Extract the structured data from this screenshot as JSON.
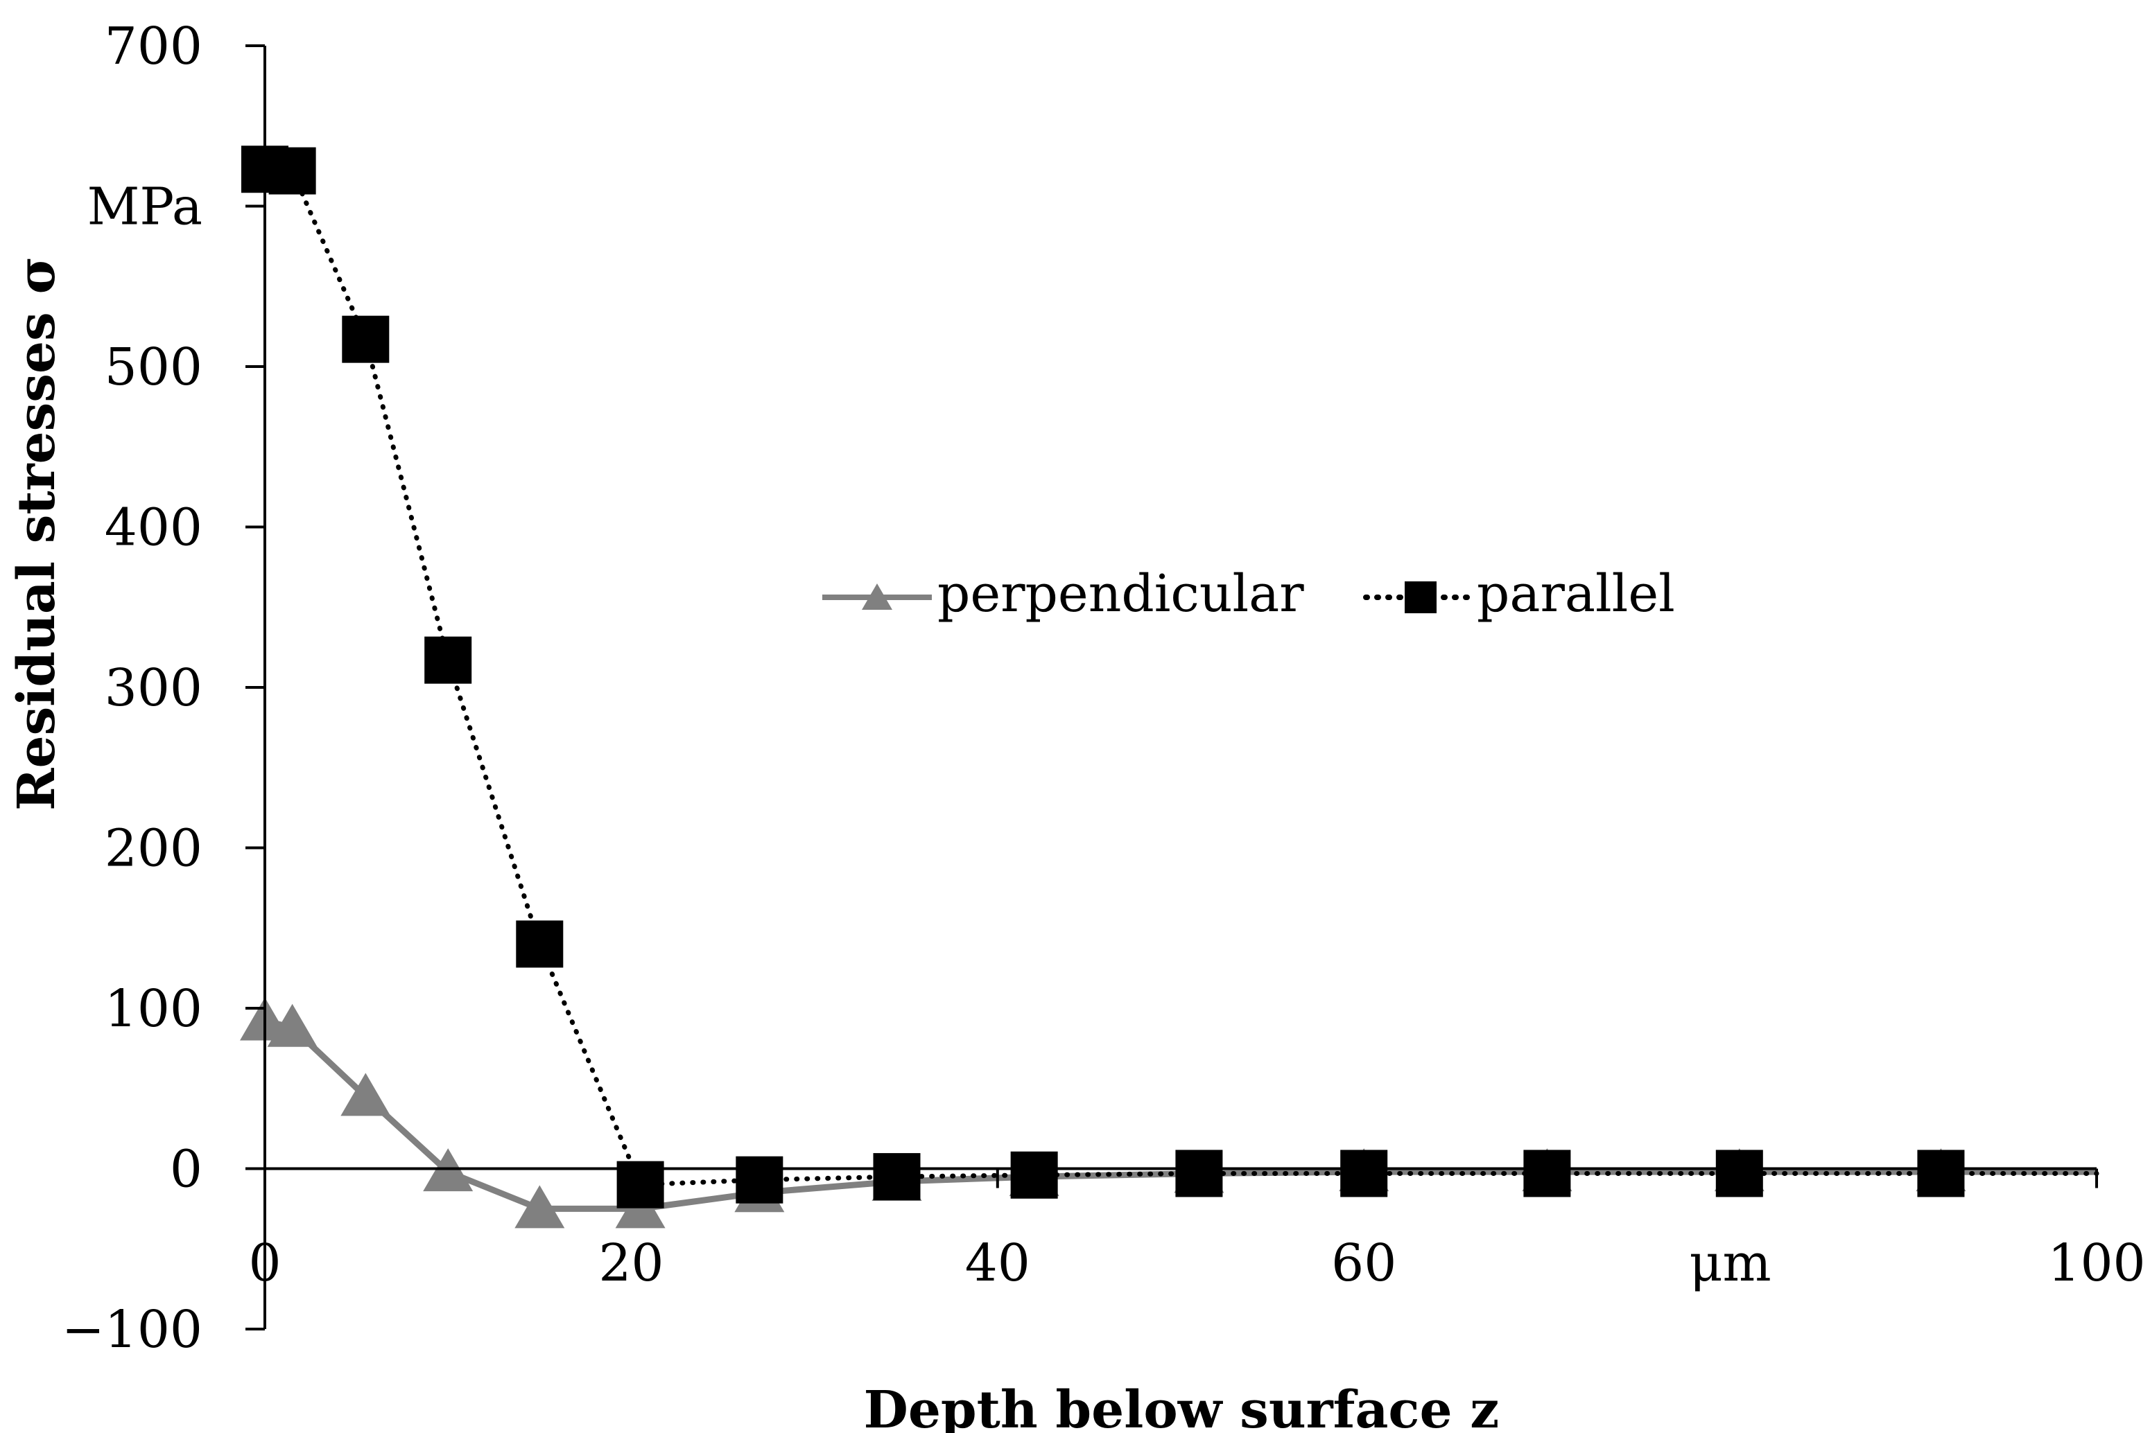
{
  "chart_data": {
    "type": "line",
    "xlabel": "Depth below surface z",
    "ylabel": "Residual stresses σ",
    "x_unit": "μm",
    "y_unit": "MPa",
    "xlim": [
      0,
      100
    ],
    "ylim": [
      -100,
      700
    ],
    "x_ticks": [
      "0",
      "20",
      "40",
      "60",
      "μm",
      "100"
    ],
    "y_ticks": [
      "700",
      "MPa",
      "500",
      "400",
      "300",
      "200",
      "100",
      "0",
      "−100"
    ],
    "grid": false,
    "legend_position": "center",
    "series": [
      {
        "name": "perpendicular",
        "color": "#808080",
        "line_style": "solid",
        "marker": "triangle",
        "x": [
          0,
          1.5,
          5.5,
          10,
          15,
          20.5,
          27,
          34.5,
          42,
          51,
          60,
          70,
          80.5,
          91.5,
          100
        ],
        "y": [
          92,
          88,
          45,
          -2,
          -25,
          -25,
          -15,
          -8,
          -5,
          -3,
          -2,
          -2,
          -2,
          -2,
          -2
        ]
      },
      {
        "name": "parallel",
        "color": "#000000",
        "line_style": "dotted",
        "marker": "square",
        "x": [
          0,
          1.5,
          5.5,
          10,
          15,
          20.5,
          27,
          34.5,
          42,
          51,
          60,
          70,
          80.5,
          91.5,
          100
        ],
        "y": [
          623,
          622,
          517,
          317,
          140,
          -10,
          -7,
          -5,
          -4,
          -3,
          -3,
          -3,
          -3,
          -3,
          -3
        ]
      }
    ]
  }
}
